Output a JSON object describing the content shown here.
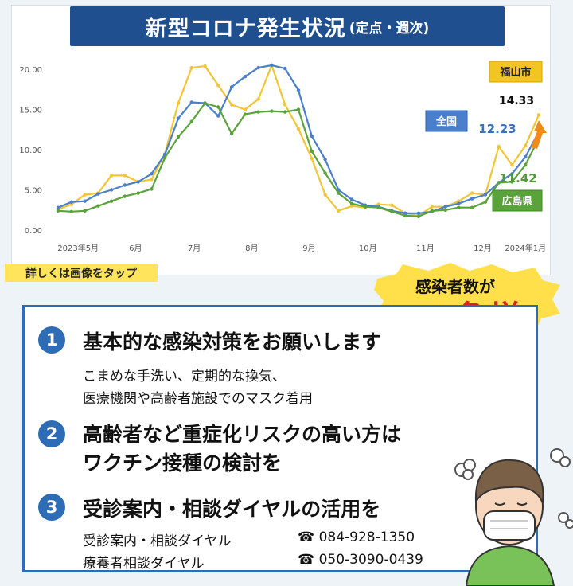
{
  "title": {
    "main": "新型コロナ発生状況",
    "sub": "(定点・週次)"
  },
  "chart_data": {
    "type": "line",
    "y_ticks": [
      "20.00",
      "15.00",
      "10.00",
      "5.00",
      "0.00"
    ],
    "ylim": [
      0,
      21
    ],
    "x_ticks": [
      "2023年5月",
      "6月",
      "7月",
      "8月",
      "9月",
      "10月",
      "11月",
      "12月",
      "2024年1月"
    ],
    "grid": false,
    "series": [
      {
        "name": "福山市",
        "color": "#f1c534",
        "label_value": "14.33",
        "values": [
          2.6,
          3.2,
          4.4,
          4.6,
          6.8,
          6.8,
          6.0,
          6.3,
          9.5,
          15.8,
          20.2,
          20.4,
          18.0,
          15.6,
          15.0,
          16.3,
          20.5,
          15.6,
          12.6,
          8.9,
          4.4,
          2.4,
          3.0,
          2.8,
          3.2,
          3.1,
          2.1,
          1.8,
          2.9,
          2.9,
          3.6,
          4.6,
          4.4,
          10.4,
          8.1,
          10.5,
          14.33
        ]
      },
      {
        "name": "全国",
        "color": "#4a7fcb",
        "label_value": "12.23",
        "values": [
          2.8,
          3.5,
          3.6,
          4.5,
          5.0,
          5.6,
          6.0,
          7.0,
          9.4,
          13.9,
          15.9,
          15.8,
          14.2,
          17.8,
          19.1,
          20.2,
          20.5,
          20.1,
          17.4,
          11.7,
          8.8,
          5.0,
          3.8,
          3.1,
          2.9,
          2.4,
          2.1,
          2.1,
          2.3,
          2.9,
          3.3,
          3.9,
          4.4,
          5.9,
          7.0,
          9.1,
          12.23
        ]
      },
      {
        "name": "広島県",
        "color": "#5aa23a",
        "label_value": "11.42",
        "values": [
          2.4,
          2.3,
          2.4,
          3.0,
          3.6,
          4.2,
          4.6,
          5.1,
          9.0,
          11.6,
          13.5,
          15.8,
          15.3,
          12.0,
          14.4,
          14.7,
          14.8,
          14.7,
          15.0,
          9.8,
          7.1,
          4.6,
          3.3,
          2.9,
          2.8,
          2.3,
          1.8,
          1.7,
          2.4,
          2.5,
          2.8,
          2.8,
          3.5,
          5.9,
          6.0,
          8.1,
          11.42
        ]
      }
    ]
  },
  "tap_note": "詳しくは画像をタップ",
  "burst": {
    "line1": "感染者数が",
    "line2": "急増"
  },
  "items": [
    {
      "number": "1",
      "heading": "基本的な感染対策をお願いします",
      "body": [
        "こまめな手洗い、定期的な換気、",
        "医療機関や高齢者施設でのマスク着用"
      ]
    },
    {
      "number": "2",
      "heading_lines": [
        "高齢者など重症化リスクの高い方は",
        "ワクチン接種の検討を"
      ]
    },
    {
      "number": "3",
      "heading": "受診案内・相談ダイヤルの活用を",
      "phones": [
        {
          "label": "受診案内・相談ダイヤル",
          "icon": "phone-icon",
          "glyph": "☎",
          "number": "084-928-1350"
        },
        {
          "label": "療養者相談ダイヤル",
          "icon": "phone-icon",
          "glyph": "☎",
          "number": "050-3090-0439"
        }
      ]
    }
  ],
  "colors": {
    "banner": "#1f4f8f",
    "accent_blue": "#2e6cb5",
    "alert_red": "#d2231e",
    "yellow": "#ffe45c"
  }
}
